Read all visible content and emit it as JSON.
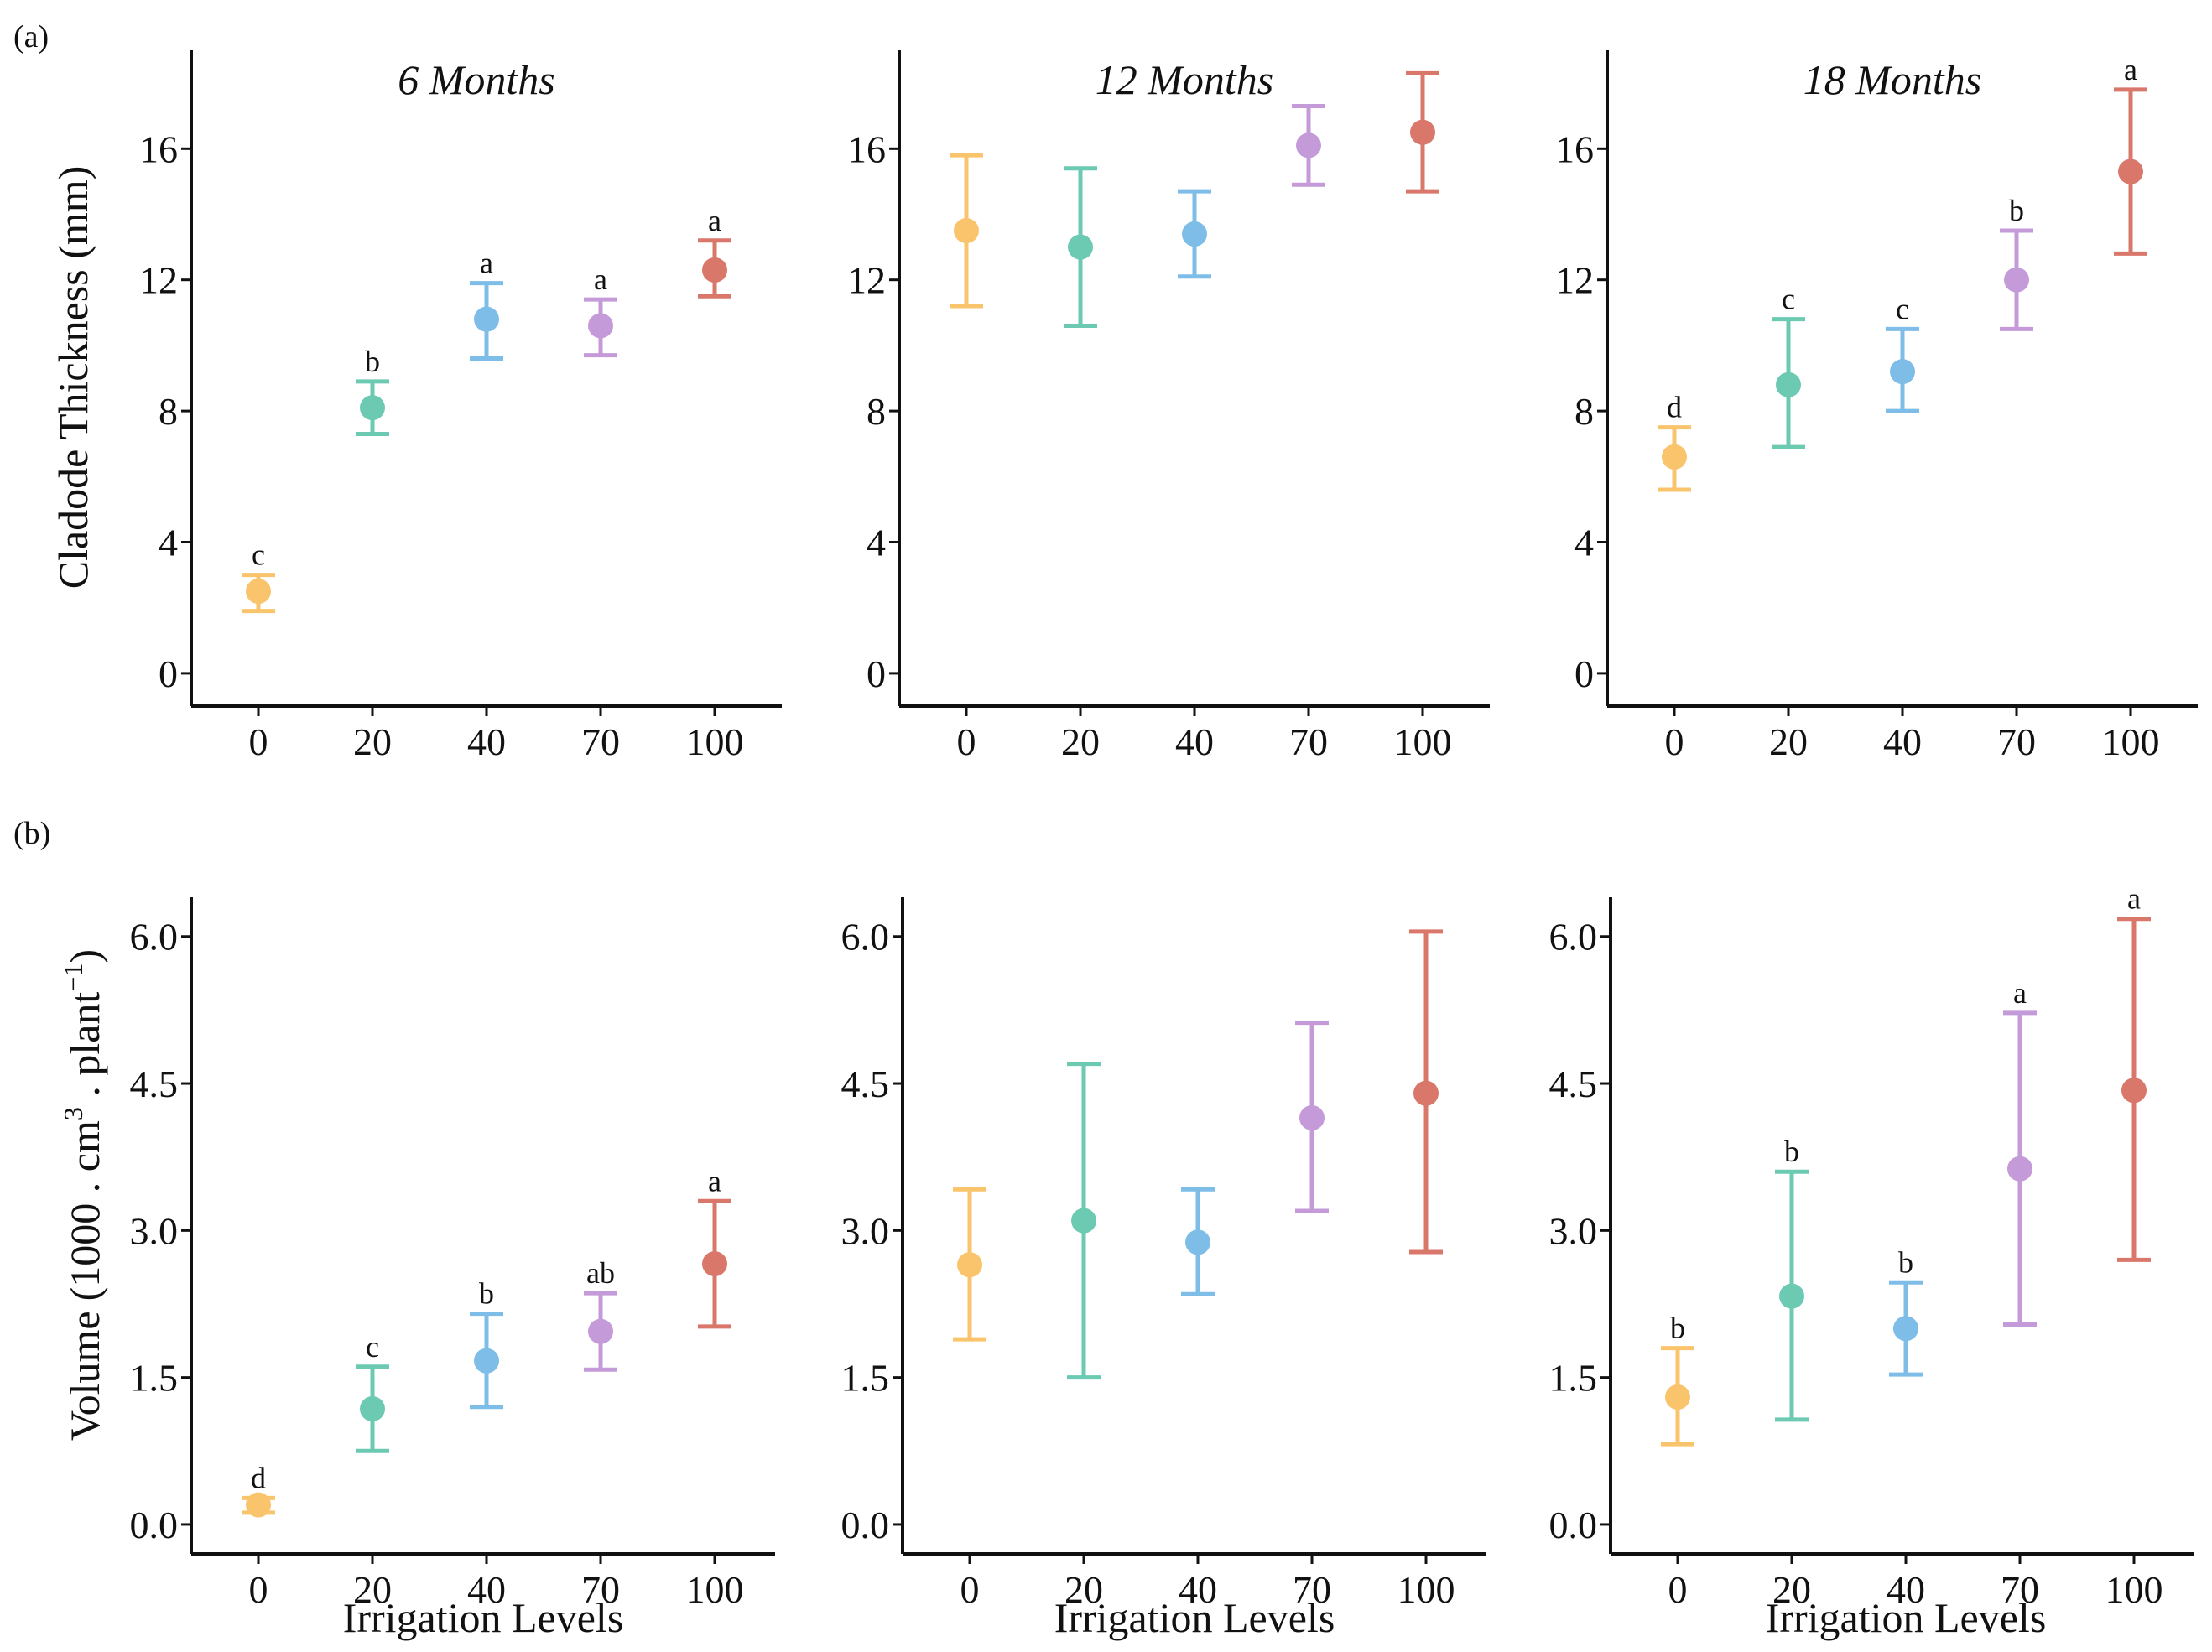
{
  "figure": {
    "panel_tags": [
      "(a)",
      "(b)"
    ],
    "x_axis_title": "Irrigation Levels",
    "y_axis_titles": {
      "thickness": "Cladode Thickness (mm)",
      "volume_prefix": "Volume",
      "volume_unit_open": "(1000 . cm",
      "volume_unit_sup1": "3",
      "volume_unit_mid": " . plant",
      "volume_unit_sup2": "−1",
      "volume_unit_close": ")"
    }
  },
  "colors": {
    "level_0": "#f9c46b",
    "level_20": "#6cc9b2",
    "level_40": "#7fbde9",
    "level_70": "#c49ad9",
    "level_100": "#d9776b"
  },
  "chart_data": [
    {
      "type": "scatter",
      "title": "6 Months",
      "xlabel": "",
      "ylabel": "Cladode Thickness (mm)",
      "categories": [
        "0",
        "20",
        "40",
        "70",
        "100"
      ],
      "values": [
        2.5,
        8.1,
        10.8,
        10.6,
        12.3
      ],
      "err_low": [
        1.9,
        7.3,
        9.6,
        9.7,
        11.5
      ],
      "err_high": [
        3.0,
        8.9,
        11.9,
        11.4,
        13.2
      ],
      "labels": [
        "c",
        "b",
        "a",
        "a",
        "a"
      ],
      "ylim": [
        -1,
        19
      ],
      "yticks": [
        0,
        4,
        8,
        12,
        16
      ],
      "ytick_labels": [
        "0",
        "4",
        "8",
        "12",
        "16"
      ]
    },
    {
      "type": "scatter",
      "title": "12 Months",
      "xlabel": "",
      "ylabel": "",
      "categories": [
        "0",
        "20",
        "40",
        "70",
        "100"
      ],
      "values": [
        13.5,
        13.0,
        13.4,
        16.1,
        16.5
      ],
      "err_low": [
        11.2,
        10.6,
        12.1,
        14.9,
        14.7
      ],
      "err_high": [
        15.8,
        15.4,
        14.7,
        17.3,
        18.3
      ],
      "labels": [
        "",
        "",
        "",
        "",
        ""
      ],
      "ylim": [
        -1,
        19
      ],
      "yticks": [
        0,
        4,
        8,
        12,
        16
      ],
      "ytick_labels": [
        "0",
        "4",
        "8",
        "12",
        "16"
      ]
    },
    {
      "type": "scatter",
      "title": "18 Months",
      "xlabel": "",
      "ylabel": "",
      "categories": [
        "0",
        "20",
        "40",
        "70",
        "100"
      ],
      "values": [
        6.6,
        8.8,
        9.2,
        12.0,
        15.3
      ],
      "err_low": [
        5.6,
        6.9,
        8.0,
        10.5,
        12.8
      ],
      "err_high": [
        7.5,
        10.8,
        10.5,
        13.5,
        17.8
      ],
      "labels": [
        "d",
        "c",
        "c",
        "b",
        "a"
      ],
      "ylim": [
        -1,
        19
      ],
      "yticks": [
        0,
        4,
        8,
        12,
        16
      ],
      "ytick_labels": [
        "0",
        "4",
        "8",
        "12",
        "16"
      ]
    },
    {
      "type": "scatter",
      "title": "",
      "xlabel": "Irrigation Levels",
      "ylabel": "Volume (1000 . cm3 . plant−1)",
      "categories": [
        "0",
        "20",
        "40",
        "70",
        "100"
      ],
      "values": [
        0.2,
        1.18,
        1.67,
        1.97,
        2.66
      ],
      "err_low": [
        0.12,
        0.75,
        1.2,
        1.58,
        2.02
      ],
      "err_high": [
        0.27,
        1.61,
        2.15,
        2.36,
        3.3
      ],
      "labels": [
        "d",
        "c",
        "b",
        "ab",
        "a"
      ],
      "ylim": [
        -0.3,
        6.4
      ],
      "yticks": [
        0,
        1.5,
        3,
        4.5,
        6
      ],
      "ytick_labels": [
        "0.0",
        "1.5",
        "3.0",
        "4.5",
        "6.0"
      ]
    },
    {
      "type": "scatter",
      "title": "",
      "xlabel": "Irrigation Levels",
      "ylabel": "",
      "categories": [
        "0",
        "20",
        "40",
        "70",
        "100"
      ],
      "values": [
        2.65,
        3.1,
        2.88,
        4.15,
        4.4
      ],
      "err_low": [
        1.89,
        1.5,
        2.35,
        3.2,
        2.78
      ],
      "err_high": [
        3.42,
        4.7,
        3.42,
        5.12,
        6.05
      ],
      "labels": [
        "",
        "",
        "",
        "",
        ""
      ],
      "ylim": [
        -0.3,
        6.4
      ],
      "yticks": [
        0,
        1.5,
        3,
        4.5,
        6
      ],
      "ytick_labels": [
        "0.0",
        "1.5",
        "3.0",
        "4.5",
        "6.0"
      ]
    },
    {
      "type": "scatter",
      "title": "",
      "xlabel": "Irrigation Levels",
      "ylabel": "",
      "categories": [
        "0",
        "20",
        "40",
        "70",
        "100"
      ],
      "values": [
        1.3,
        2.33,
        2.0,
        3.63,
        4.43
      ],
      "err_low": [
        0.82,
        1.07,
        1.53,
        2.04,
        2.7
      ],
      "err_high": [
        1.8,
        3.6,
        2.47,
        5.22,
        6.18
      ],
      "labels": [
        "b",
        "b",
        "b",
        "a",
        "a"
      ],
      "ylim": [
        -0.3,
        6.4
      ],
      "yticks": [
        0,
        1.5,
        3,
        4.5,
        6
      ],
      "ytick_labels": [
        "0.0",
        "1.5",
        "3.0",
        "4.5",
        "6.0"
      ]
    }
  ]
}
